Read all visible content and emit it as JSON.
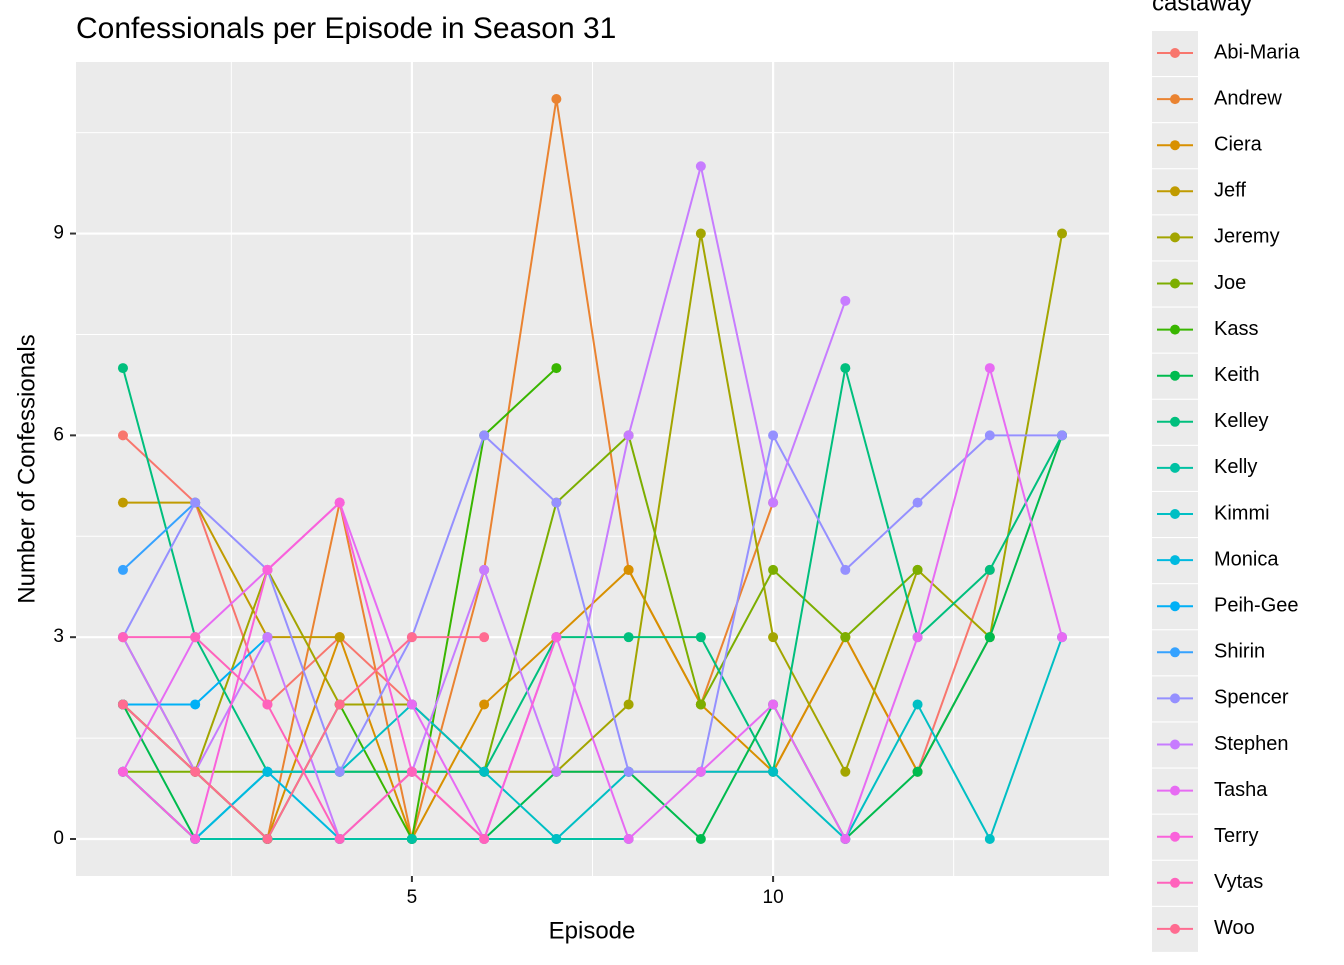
{
  "chart_data": {
    "type": "line",
    "title": "Confessionals per Episode in Season 31",
    "xlabel": "Episode",
    "ylabel": "Number of Confessionals",
    "legend_title": "castaway",
    "x": [
      1,
      2,
      3,
      4,
      5,
      6,
      7,
      8,
      9,
      10,
      11,
      12,
      13,
      14
    ],
    "xlim": [
      0.35,
      14.65
    ],
    "xticks": [
      5,
      10
    ],
    "ylim": [
      -0.55,
      11.55
    ],
    "yticks": [
      0,
      3,
      6,
      9
    ],
    "grid": true,
    "legend": "right",
    "series": [
      {
        "name": "Abi-Maria",
        "color": "#F8766D",
        "values": [
          6,
          5,
          2,
          3,
          2,
          1,
          1,
          1,
          1,
          1,
          3,
          1,
          4,
          null
        ]
      },
      {
        "name": "Andrew",
        "color": "#EA8331",
        "values": [
          2,
          1,
          0,
          5,
          0,
          4,
          11,
          4,
          2,
          5,
          null,
          null,
          null,
          null
        ]
      },
      {
        "name": "Ciera",
        "color": "#D89000",
        "values": [
          2,
          1,
          0,
          3,
          0,
          2,
          3,
          4,
          2,
          1,
          3,
          1,
          3,
          null
        ]
      },
      {
        "name": "Jeff",
        "color": "#C09B00",
        "values": [
          5,
          5,
          3,
          3,
          null,
          null,
          null,
          null,
          null,
          null,
          null,
          null,
          null,
          null
        ]
      },
      {
        "name": "Jeremy",
        "color": "#A3A500",
        "values": [
          3,
          1,
          4,
          2,
          2,
          1,
          1,
          2,
          9,
          3,
          1,
          4,
          3,
          9
        ]
      },
      {
        "name": "Joe",
        "color": "#7CAE00",
        "values": [
          1,
          1,
          1,
          1,
          1,
          1,
          5,
          6,
          2,
          4,
          3,
          4,
          null,
          null
        ]
      },
      {
        "name": "Kass",
        "color": "#39B600",
        "values": [
          2,
          1,
          0,
          2,
          0,
          6,
          7,
          null,
          null,
          null,
          null,
          null,
          null,
          null
        ]
      },
      {
        "name": "Keith",
        "color": "#00BB4E",
        "values": [
          2,
          0,
          0,
          0,
          0,
          0,
          1,
          1,
          0,
          2,
          0,
          1,
          3,
          6
        ]
      },
      {
        "name": "Kelley",
        "color": "#00BF7D",
        "values": [
          7,
          3,
          1,
          1,
          1,
          1,
          3,
          3,
          3,
          1,
          7,
          3,
          4,
          6
        ]
      },
      {
        "name": "Kelly",
        "color": "#00C1A3",
        "values": [
          1,
          0,
          0,
          0,
          0,
          0,
          0,
          0,
          null,
          null,
          null,
          null,
          null,
          null
        ]
      },
      {
        "name": "Kimmi",
        "color": "#00BFC4",
        "values": [
          1,
          0,
          1,
          1,
          2,
          1,
          0,
          1,
          1,
          1,
          0,
          2,
          0,
          3
        ]
      },
      {
        "name": "Monica",
        "color": "#00BAE0",
        "values": [
          1,
          0,
          1,
          0,
          null,
          null,
          null,
          null,
          null,
          null,
          null,
          null,
          null,
          null
        ]
      },
      {
        "name": "Peih-Gee",
        "color": "#00B0F6",
        "values": [
          2,
          2,
          3,
          null,
          null,
          null,
          null,
          null,
          null,
          null,
          null,
          null,
          null,
          null
        ]
      },
      {
        "name": "Shirin",
        "color": "#35A2FF",
        "values": [
          4,
          5,
          null,
          null,
          null,
          null,
          null,
          null,
          null,
          null,
          null,
          null,
          null,
          null
        ]
      },
      {
        "name": "Spencer",
        "color": "#9590FF",
        "values": [
          3,
          5,
          4,
          1,
          3,
          6,
          5,
          1,
          1,
          6,
          4,
          5,
          6,
          6
        ]
      },
      {
        "name": "Stephen",
        "color": "#C77CFF",
        "values": [
          3,
          1,
          3,
          0,
          1,
          4,
          1,
          6,
          10,
          5,
          8,
          null,
          null,
          null
        ]
      },
      {
        "name": "Tasha",
        "color": "#E76BF3",
        "values": [
          1,
          3,
          4,
          5,
          2,
          0,
          3,
          0,
          1,
          2,
          0,
          3,
          7,
          3
        ]
      },
      {
        "name": "Terry",
        "color": "#FA62DB",
        "values": [
          1,
          0,
          4,
          5,
          1,
          0,
          3,
          null,
          null,
          null,
          null,
          null,
          null,
          null
        ]
      },
      {
        "name": "Vytas",
        "color": "#FF62BC",
        "values": [
          3,
          3,
          2,
          0,
          1,
          0,
          null,
          null,
          null,
          null,
          null,
          null,
          null,
          null
        ]
      },
      {
        "name": "Woo",
        "color": "#FF6C91",
        "values": [
          2,
          1,
          0,
          2,
          3,
          3,
          null,
          null,
          null,
          null,
          null,
          null,
          null,
          null
        ]
      }
    ]
  }
}
